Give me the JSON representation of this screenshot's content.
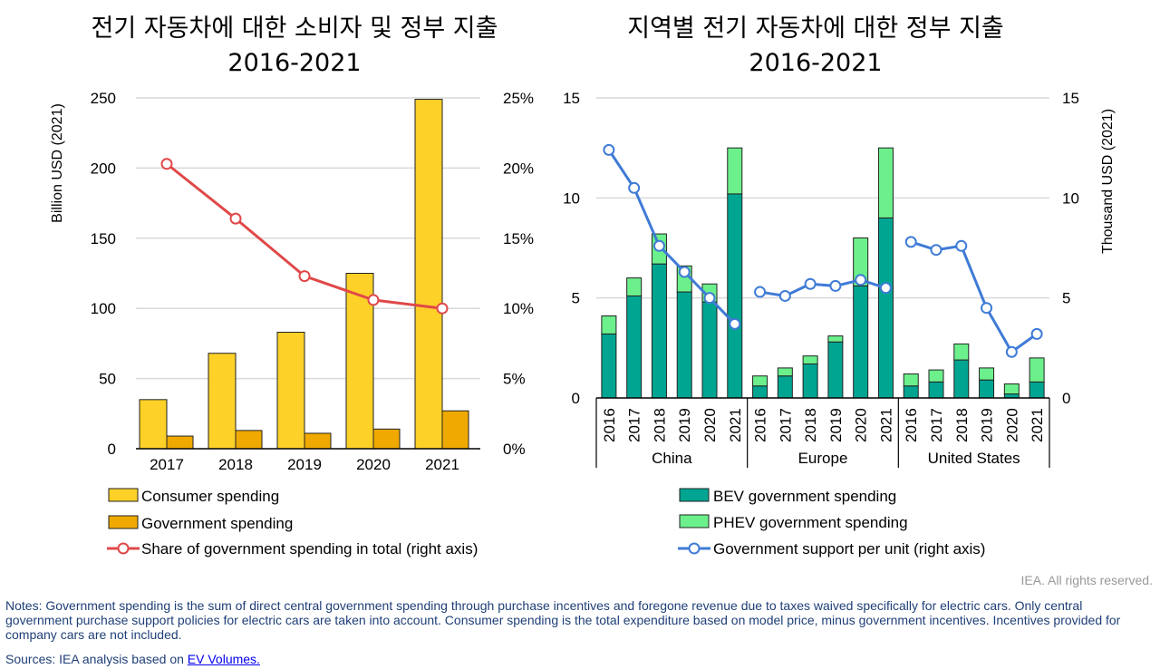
{
  "chart_data": [
    {
      "type": "bar",
      "title": [
        "전기 자동차에 대한 소비자 및 정부 지출",
        "2016-2021"
      ],
      "categories": [
        "2017",
        "2018",
        "2019",
        "2020",
        "2021"
      ],
      "ylabel": "Billion USD (2021)",
      "ylim": [
        0,
        250
      ],
      "yticks": [
        "0",
        "50",
        "100",
        "150",
        "200",
        "250"
      ],
      "y2lim": [
        0,
        25
      ],
      "y2ticks": [
        "0%",
        "5%",
        "10%",
        "15%",
        "20%",
        "25%"
      ],
      "grid": true,
      "legend_placement": "bottom",
      "series": [
        {
          "name": "Consumer spending",
          "kind": "bar",
          "color": "#FDD128",
          "values": [
            35,
            68,
            83,
            125,
            249
          ]
        },
        {
          "name": "Government spending",
          "kind": "bar",
          "color": "#F0A900",
          "values": [
            9,
            13,
            11,
            14,
            27
          ]
        },
        {
          "name": "Share of government spending in total (right axis)",
          "kind": "line",
          "axis": "right",
          "color": "#E04848",
          "unit": "%",
          "values": [
            20.3,
            16.4,
            12.3,
            10.6,
            10.0
          ]
        }
      ]
    },
    {
      "type": "bar",
      "stacked": true,
      "title": [
        "지역별 전기 자동차에 대한 정부 지출",
        "2016-2021"
      ],
      "groups": [
        "China",
        "Europe",
        "United States"
      ],
      "categories": [
        "2016",
        "2017",
        "2018",
        "2019",
        "2020",
        "2021"
      ],
      "ylim": [
        0,
        15
      ],
      "yticks": [
        "0",
        "5",
        "10",
        "15"
      ],
      "y2label": "Thousand USD (2021)",
      "y2lim": [
        0,
        15
      ],
      "y2ticks": [
        "0",
        "5",
        "10",
        "15"
      ],
      "grid": true,
      "legend_placement": "bottom",
      "series": [
        {
          "name": "BEV government spending",
          "kind": "bar",
          "color": "#00A591",
          "values": [
            [
              3.2,
              5.1,
              6.7,
              5.3,
              4.8,
              10.2
            ],
            [
              0.6,
              1.1,
              1.7,
              2.8,
              5.6,
              9.0
            ],
            [
              0.6,
              0.8,
              1.9,
              0.9,
              0.2,
              0.8
            ]
          ]
        },
        {
          "name": "PHEV government spending",
          "kind": "bar",
          "color": "#6CF08C",
          "values": [
            [
              0.9,
              0.9,
              1.5,
              1.3,
              0.9,
              2.3
            ],
            [
              0.5,
              0.4,
              0.4,
              0.3,
              2.4,
              3.5
            ],
            [
              0.6,
              0.6,
              0.8,
              0.6,
              0.5,
              1.2
            ]
          ]
        },
        {
          "name": "Government support per unit (right axis)",
          "kind": "line",
          "axis": "right",
          "color": "#3F7BD6",
          "values": [
            [
              12.4,
              10.5,
              7.6,
              6.3,
              5.0,
              3.7
            ],
            [
              5.3,
              5.1,
              5.7,
              5.6,
              5.9,
              5.5
            ],
            [
              7.8,
              7.4,
              7.6,
              4.5,
              2.3,
              3.2
            ]
          ]
        }
      ]
    }
  ],
  "footer": {
    "rights": "IEA. All rights reserved.",
    "notes": "Notes: Government spending is the sum of direct central government spending through purchase incentives and foregone revenue due to taxes waived specifically for electric cars. Only central government purchase support policies for electric cars are taken into account. Consumer spending is the total expenditure based on model price, minus government incentives. Incentives provided for company cars are not included.",
    "sources_prefix": "Sources: IEA analysis based on ",
    "sources_link": "EV Volumes."
  }
}
